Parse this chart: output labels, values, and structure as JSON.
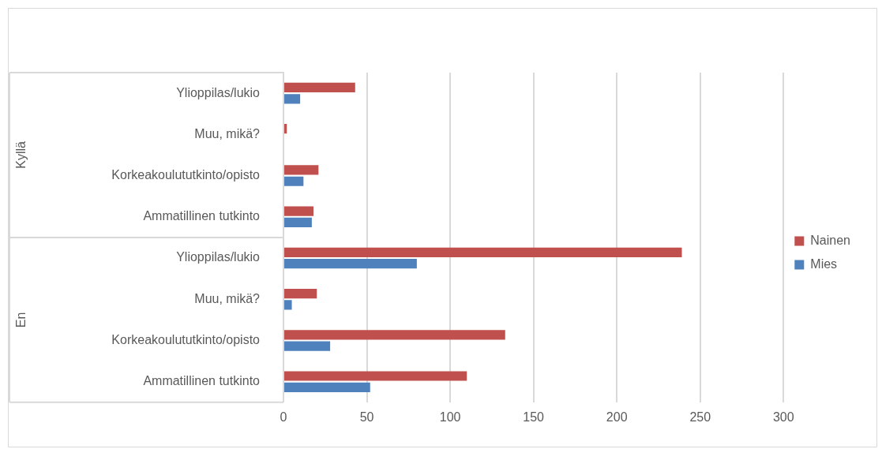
{
  "chart_data": {
    "type": "bar",
    "orientation": "horizontal",
    "categories": [
      "Ylioppilas/lukio",
      "Muu, mikä?",
      "Korkeakoulututkinto/opisto",
      "Ammatillinen tutkinto",
      "Ylioppilas/lukio",
      "Muu, mikä?",
      "Korkeakoulututkinto/opisto",
      "Ammatillinen tutkinto"
    ],
    "series": [
      {
        "name": "Nainen",
        "color": "#c0504d",
        "values": [
          43,
          2,
          21,
          18,
          239,
          20,
          133,
          110
        ]
      },
      {
        "name": "Mies",
        "color": "#4f81bd",
        "values": [
          10,
          0,
          12,
          17,
          80,
          5,
          28,
          52
        ]
      }
    ],
    "annotations": [
      "Kyllä",
      "En"
    ],
    "xlim": [
      0,
      300
    ],
    "xticks": [
      0,
      50,
      100,
      150,
      200,
      250,
      300
    ],
    "grid": "x",
    "legend": "right"
  }
}
